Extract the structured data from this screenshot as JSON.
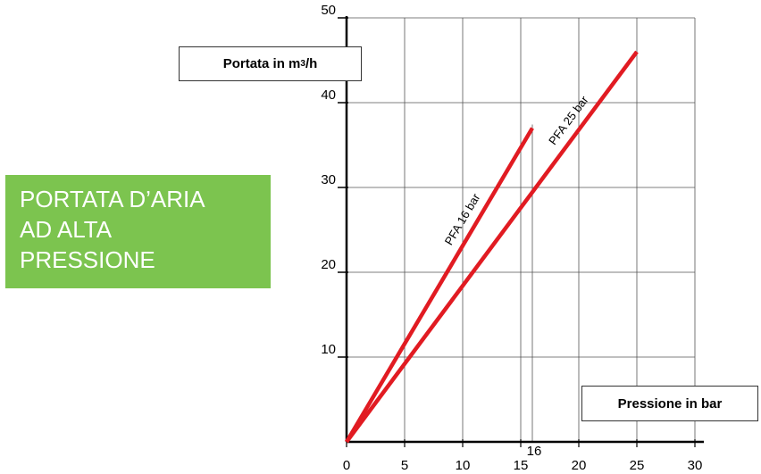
{
  "title_box": {
    "lines": [
      "PORTATA D’ARIA",
      "AD ALTA",
      "PRESSIONE"
    ],
    "color": "#7cc44f"
  },
  "ylabel_box": {
    "text": "Portata in m",
    "sup": "3",
    "suffix": "/h"
  },
  "xlabel_box": {
    "text": "Pressione in bar"
  },
  "extra_tick": "16",
  "chart_data": {
    "type": "line",
    "title": "PORTATA D’ARIA AD ALTA PRESSIONE",
    "xlabel": "Pressione in bar",
    "ylabel": "Portata in m3/h",
    "xlim": [
      0,
      30
    ],
    "ylim": [
      0,
      50
    ],
    "xticks": [
      0,
      5,
      10,
      15,
      20,
      25,
      30
    ],
    "yticks": [
      10,
      20,
      30,
      40,
      50
    ],
    "extra_vline": 16,
    "grid": true,
    "line_color": "#e11b22",
    "series": [
      {
        "name": "PFA 16 bar",
        "x": [
          0,
          16
        ],
        "y": [
          0,
          37
        ]
      },
      {
        "name": "PFA 25 bar",
        "x": [
          0,
          25
        ],
        "y": [
          0,
          46
        ]
      }
    ]
  }
}
